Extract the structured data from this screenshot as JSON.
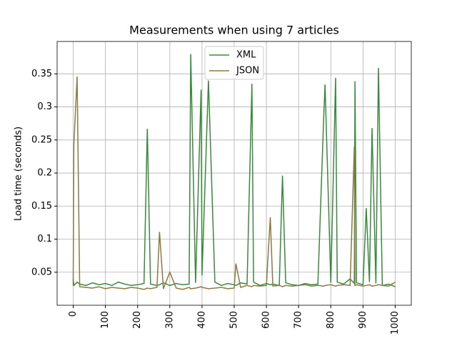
{
  "chart_data": {
    "type": "line",
    "title": "Measurements when using 7 articles",
    "y_label": "Load time (seconds)",
    "x": [
      0,
      2,
      12,
      20,
      40,
      60,
      80,
      100,
      120,
      140,
      160,
      180,
      200,
      220,
      230,
      240,
      260,
      268,
      280,
      300,
      320,
      340,
      360,
      365,
      380,
      397,
      400,
      420,
      440,
      460,
      480,
      500,
      505,
      520,
      540,
      555,
      560,
      580,
      600,
      612,
      620,
      640,
      650,
      660,
      680,
      700,
      720,
      740,
      760,
      778,
      782,
      800,
      815,
      820,
      840,
      860,
      873,
      875,
      880,
      900,
      910,
      920,
      928,
      940,
      948,
      960,
      980,
      1000
    ],
    "series": [
      {
        "name": "XML",
        "color": "#3a8a3e",
        "values": [
          0.04,
          0.03,
          0.035,
          0.032,
          0.03,
          0.034,
          0.031,
          0.033,
          0.03,
          0.035,
          0.032,
          0.03,
          0.031,
          0.033,
          0.267,
          0.032,
          0.03,
          0.031,
          0.034,
          0.03,
          0.033,
          0.031,
          0.032,
          0.38,
          0.034,
          0.326,
          0.045,
          0.34,
          0.035,
          0.03,
          0.033,
          0.031,
          0.03,
          0.034,
          0.032,
          0.335,
          0.035,
          0.03,
          0.033,
          0.031,
          0.032,
          0.03,
          0.196,
          0.034,
          0.031,
          0.03,
          0.033,
          0.031,
          0.032,
          0.286,
          0.334,
          0.034,
          0.344,
          0.035,
          0.032,
          0.04,
          0.033,
          0.339,
          0.034,
          0.031,
          0.147,
          0.035,
          0.268,
          0.033,
          0.359,
          0.03,
          0.032,
          0.028
        ]
      },
      {
        "name": "JSON",
        "color": "#8c7a42",
        "values": [
          0.03,
          0.242,
          0.346,
          0.028,
          0.027,
          0.026,
          0.028,
          0.025,
          0.027,
          0.026,
          0.025,
          0.027,
          0.026,
          0.024,
          0.026,
          0.025,
          0.027,
          0.111,
          0.025,
          0.05,
          0.026,
          0.024,
          0.027,
          0.025,
          0.026,
          0.028,
          0.027,
          0.025,
          0.026,
          0.027,
          0.025,
          0.026,
          0.063,
          0.027,
          0.03,
          0.028,
          0.03,
          0.029,
          0.03,
          0.133,
          0.029,
          0.03,
          0.028,
          0.03,
          0.029,
          0.03,
          0.031,
          0.029,
          0.03,
          0.029,
          0.03,
          0.031,
          0.029,
          0.03,
          0.031,
          0.03,
          0.24,
          0.03,
          0.031,
          0.029,
          0.03,
          0.031,
          0.029,
          0.03,
          0.031,
          0.03,
          0.029,
          0.035
        ]
      }
    ],
    "xlim": [
      -50,
      1050
    ],
    "ylim": [
      0,
      0.399
    ],
    "xticks": [
      0,
      100,
      200,
      300,
      400,
      500,
      600,
      700,
      800,
      900,
      1000
    ],
    "yticks": [
      0.05,
      0.1,
      0.15,
      0.2,
      0.25,
      0.3,
      0.35
    ],
    "grid": true,
    "legend": "upper center"
  }
}
